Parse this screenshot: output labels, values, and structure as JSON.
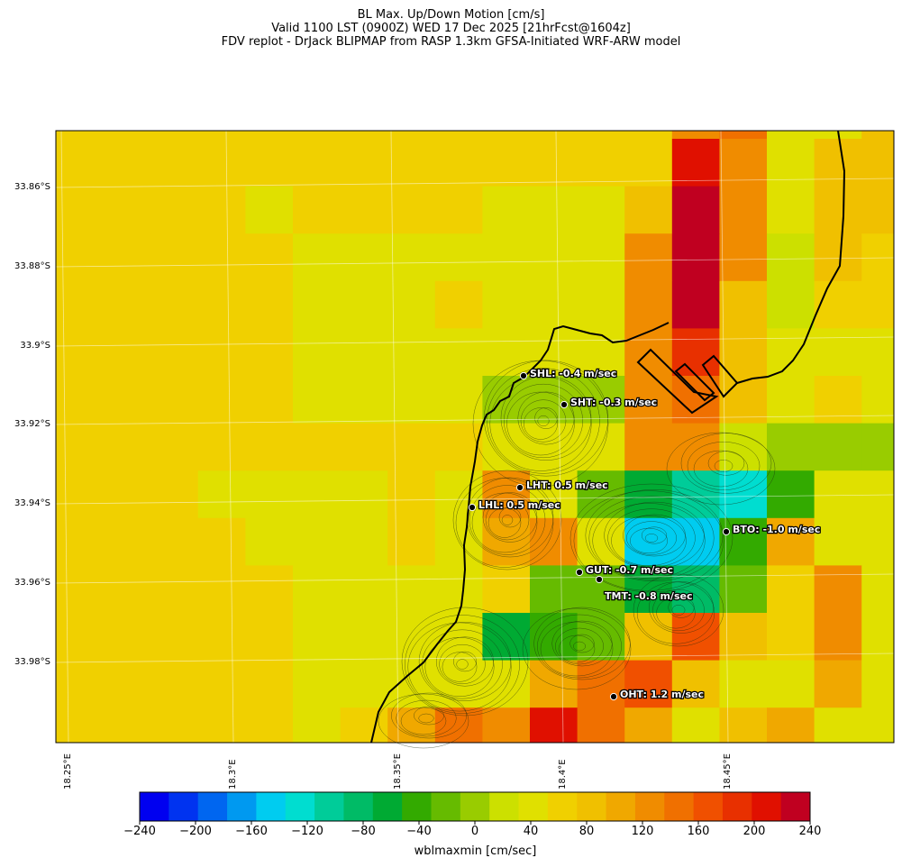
{
  "title_lines": [
    "BL Max. Up/Down Motion [cm/s]",
    "Valid 1100 LST (0900Z) WED 17 Dec 2025 [21hrFcst@1604z]",
    "FDV replot - DrJack BLIPMAP from RASP 1.3km GFSA-Initiated WRF-ARW model"
  ],
  "lat_labels": [
    "33.86°S",
    "33.88°S",
    "33.9°S",
    "33.92°S",
    "33.94°S",
    "33.96°S",
    "33.98°S"
  ],
  "lon_labels": [
    "18.25°E",
    "18.3°E",
    "18.35°E",
    "18.4°E",
    "18.45°E"
  ],
  "colorbar": {
    "label": "wblmaxmin [cm/sec]",
    "ticks": [
      "−240",
      "−200",
      "−160",
      "−120",
      "−80",
      "−40",
      "0",
      "40",
      "80",
      "120",
      "160",
      "200",
      "240"
    ],
    "colors": [
      "#0000f0",
      "#0033f0",
      "#0066f0",
      "#0099f0",
      "#00ccf0",
      "#00ddd0",
      "#00cc99",
      "#00bb66",
      "#00aa33",
      "#33aa00",
      "#66bb00",
      "#99cc00",
      "#cce000",
      "#e0e000",
      "#f0d000",
      "#f0c000",
      "#f0a800",
      "#f08c00",
      "#f07000",
      "#f05000",
      "#e83000",
      "#e01000",
      "#c00020"
    ]
  },
  "stations": [
    {
      "code": "SHL",
      "label": "SHL: -0.4 m/sec"
    },
    {
      "code": "SHT",
      "label": "SHT: -0.3 m/sec"
    },
    {
      "code": "LHT",
      "label": "LHT: 0.5 m/sec"
    },
    {
      "code": "LHL",
      "label": "LHL: 0.5 m/sec"
    },
    {
      "code": "BTO",
      "label": "BTO: -1.0 m/sec"
    },
    {
      "code": "GUT",
      "label": "GUT: -0.7 m/sec"
    },
    {
      "code": "TMT",
      "label": "TMT: -0.8 m/sec"
    },
    {
      "code": "OHT",
      "label": "OHT: 1.2 m/sec"
    }
  ],
  "grid_values": [
    [
      40,
      40,
      40,
      40,
      40,
      40,
      40,
      40,
      40,
      40,
      40,
      40,
      40,
      180,
      60,
      20,
      20,
      60
    ],
    [
      40,
      40,
      40,
      40,
      40,
      40,
      40,
      40,
      40,
      40,
      40,
      40,
      40,
      180,
      100,
      20,
      60,
      60
    ],
    [
      40,
      40,
      40,
      40,
      20,
      40,
      40,
      40,
      40,
      20,
      20,
      20,
      60,
      220,
      100,
      20,
      60,
      60
    ],
    [
      40,
      40,
      40,
      40,
      40,
      20,
      20,
      20,
      20,
      20,
      20,
      20,
      100,
      250,
      100,
      0,
      60,
      40
    ],
    [
      40,
      40,
      40,
      40,
      40,
      20,
      20,
      20,
      40,
      20,
      20,
      20,
      100,
      220,
      60,
      0,
      40,
      40
    ],
    [
      40,
      40,
      40,
      40,
      40,
      20,
      20,
      20,
      20,
      20,
      20,
      20,
      100,
      160,
      60,
      20,
      20,
      20
    ],
    [
      40,
      40,
      40,
      40,
      40,
      20,
      20,
      20,
      20,
      -20,
      -20,
      -20,
      100,
      120,
      60,
      20,
      40,
      20
    ],
    [
      40,
      40,
      40,
      40,
      40,
      40,
      40,
      40,
      40,
      20,
      20,
      20,
      100,
      100,
      0,
      -20,
      -20,
      -20
    ],
    [
      40,
      40,
      40,
      20,
      20,
      20,
      20,
      40,
      20,
      100,
      20,
      -40,
      -80,
      -120,
      -140,
      -60,
      20,
      20
    ],
    [
      40,
      40,
      40,
      40,
      20,
      20,
      20,
      40,
      20,
      80,
      100,
      20,
      -160,
      -160,
      -60,
      80,
      20,
      20
    ],
    [
      40,
      40,
      40,
      40,
      40,
      20,
      20,
      20,
      20,
      40,
      -40,
      -40,
      -80,
      -100,
      -40,
      40,
      100,
      20
    ],
    [
      40,
      40,
      40,
      40,
      40,
      20,
      20,
      20,
      20,
      -80,
      -60,
      -40,
      60,
      140,
      60,
      40,
      100,
      20
    ],
    [
      40,
      40,
      40,
      40,
      40,
      20,
      20,
      20,
      20,
      20,
      80,
      120,
      140,
      60,
      20,
      20,
      80,
      20
    ],
    [
      40,
      40,
      40,
      40,
      40,
      20,
      40,
      80,
      120,
      100,
      180,
      120,
      80,
      20,
      60,
      80,
      20,
      20
    ]
  ]
}
